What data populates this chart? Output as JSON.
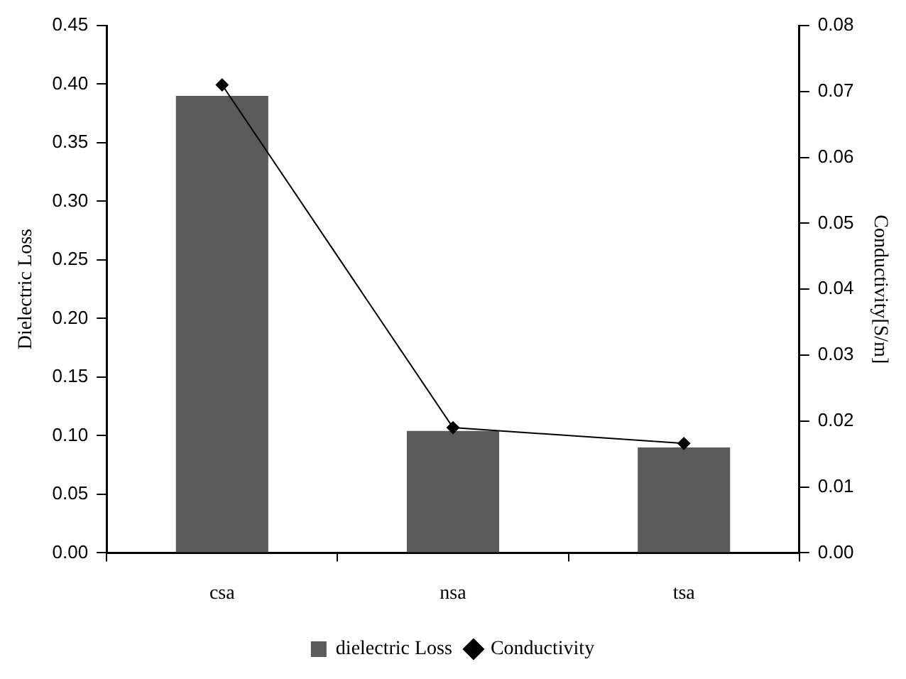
{
  "chart_data": {
    "type": "bar",
    "categories": [
      "csa",
      "nsa",
      "tsa"
    ],
    "ylabel": "Dielectric Loss",
    "y2label": "Conductivity[S/m]",
    "series": [
      {
        "name": "dielectric Loss",
        "color": "#5a5a5a",
        "values": [
          0.39,
          0.104,
          0.09
        ]
      },
      {
        "name": "Conductivity",
        "type": "line",
        "axis": "y2",
        "color": "#000000",
        "marker": "diamond",
        "values": [
          0.071,
          0.019,
          0.0166
        ]
      }
    ],
    "ylim": [
      0,
      0.45
    ],
    "yticks": [
      {
        "value": 0,
        "label": "0.00"
      },
      {
        "value": 0.05,
        "label": "0.05"
      },
      {
        "value": 0.1,
        "label": "0.10"
      },
      {
        "value": 0.15,
        "label": "0.15"
      },
      {
        "value": 0.2,
        "label": "0.20"
      },
      {
        "value": 0.25,
        "label": "0.25"
      },
      {
        "value": 0.3,
        "label": "0.30"
      },
      {
        "value": 0.35,
        "label": "0.35"
      },
      {
        "value": 0.4,
        "label": "0.40"
      },
      {
        "value": 0.45,
        "label": "0.45"
      }
    ],
    "y2lim": [
      0,
      0.08
    ],
    "y2ticks": [
      {
        "value": 0,
        "label": "0.00"
      },
      {
        "value": 0.01,
        "label": "0.01"
      },
      {
        "value": 0.02,
        "label": "0.02"
      },
      {
        "value": 0.03,
        "label": "0.03"
      },
      {
        "value": 0.04,
        "label": "0.04"
      },
      {
        "value": 0.05,
        "label": "0.05"
      },
      {
        "value": 0.06,
        "label": "0.06"
      },
      {
        "value": 0.07,
        "label": "0.07"
      },
      {
        "value": 0.08,
        "label": "0.08"
      }
    ],
    "grid": false,
    "legend": "bottom"
  }
}
